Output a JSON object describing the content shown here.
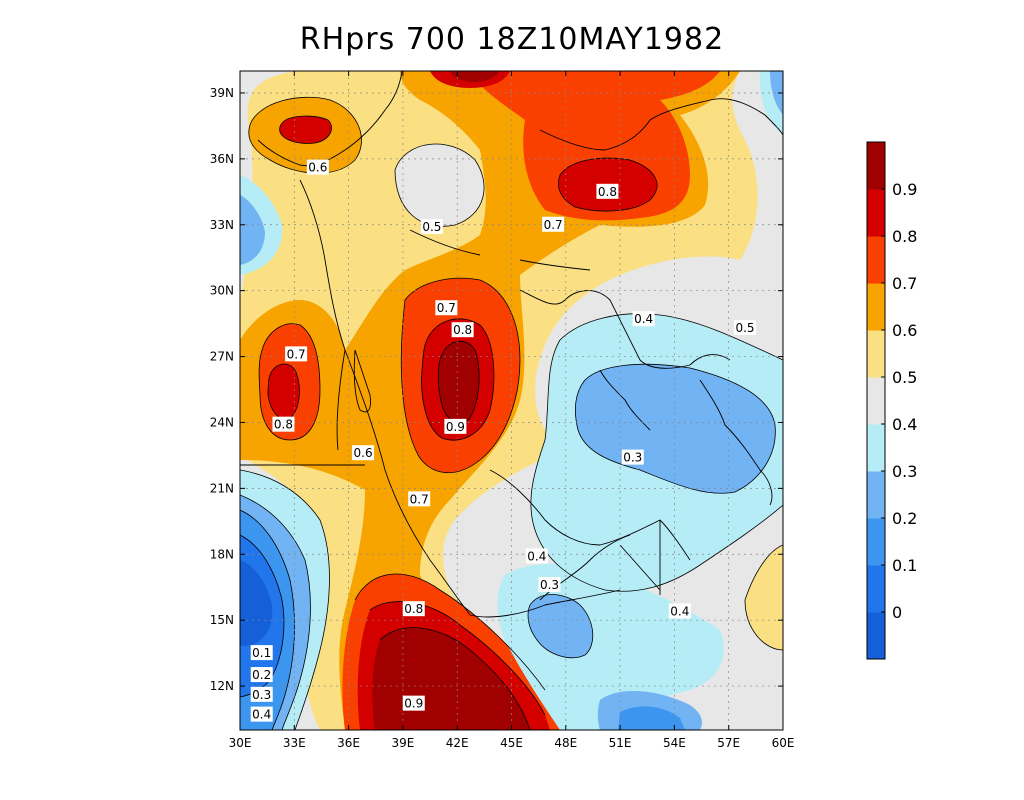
{
  "title": "RHprs 700 18Z10MAY1982",
  "map": {
    "lon_range": [
      30,
      60
    ],
    "lat_range": [
      10,
      40
    ],
    "lon_ticks": [
      "30E",
      "33E",
      "36E",
      "39E",
      "42E",
      "45E",
      "48E",
      "51E",
      "54E",
      "57E",
      "60E"
    ],
    "lat_ticks": [
      "12N",
      "15N",
      "18N",
      "21N",
      "24N",
      "27N",
      "30N",
      "33N",
      "36N",
      "39N"
    ],
    "contour_labels": [
      {
        "text": "0.6",
        "lon": 34.3,
        "lat": 35.6
      },
      {
        "text": "0.5",
        "lon": 40.6,
        "lat": 32.9
      },
      {
        "text": "0.8",
        "lon": 50.3,
        "lat": 34.5
      },
      {
        "text": "0.7",
        "lon": 47.3,
        "lat": 33.0
      },
      {
        "text": "0.7",
        "lon": 41.4,
        "lat": 29.2
      },
      {
        "text": "0.8",
        "lon": 42.3,
        "lat": 28.2
      },
      {
        "text": "0.4",
        "lon": 52.3,
        "lat": 28.7
      },
      {
        "text": "0.5",
        "lon": 57.9,
        "lat": 28.3
      },
      {
        "text": "0.7",
        "lon": 33.1,
        "lat": 27.1
      },
      {
        "text": "0.8",
        "lon": 32.4,
        "lat": 23.9
      },
      {
        "text": "0.9",
        "lon": 41.9,
        "lat": 23.8
      },
      {
        "text": "0.6",
        "lon": 36.8,
        "lat": 22.6
      },
      {
        "text": "0.3",
        "lon": 51.7,
        "lat": 22.4
      },
      {
        "text": "0.7",
        "lon": 39.9,
        "lat": 20.5
      },
      {
        "text": "0.4",
        "lon": 46.4,
        "lat": 17.9
      },
      {
        "text": "0.3",
        "lon": 47.1,
        "lat": 16.6
      },
      {
        "text": "0.4",
        "lon": 54.3,
        "lat": 15.4
      },
      {
        "text": "0.8",
        "lon": 39.6,
        "lat": 15.5
      },
      {
        "text": "0.1",
        "lon": 31.2,
        "lat": 13.5
      },
      {
        "text": "0.2",
        "lon": 31.2,
        "lat": 12.5
      },
      {
        "text": "0.3",
        "lon": 31.2,
        "lat": 11.6
      },
      {
        "text": "0.4",
        "lon": 31.2,
        "lat": 10.7
      },
      {
        "text": "0.9",
        "lon": 39.6,
        "lat": 11.2
      }
    ]
  },
  "colorbar": {
    "colors": [
      "#1560d8",
      "#2176ec",
      "#3c96f0",
      "#72b3f4",
      "#b6ecf6",
      "#e7e7e7",
      "#fbe083",
      "#f8a400",
      "#fa4000",
      "#d40000",
      "#a00000"
    ],
    "labels": [
      "0",
      "0.1",
      "0.2",
      "0.3",
      "0.4",
      "0.5",
      "0.6",
      "0.7",
      "0.8",
      "0.9"
    ]
  }
}
